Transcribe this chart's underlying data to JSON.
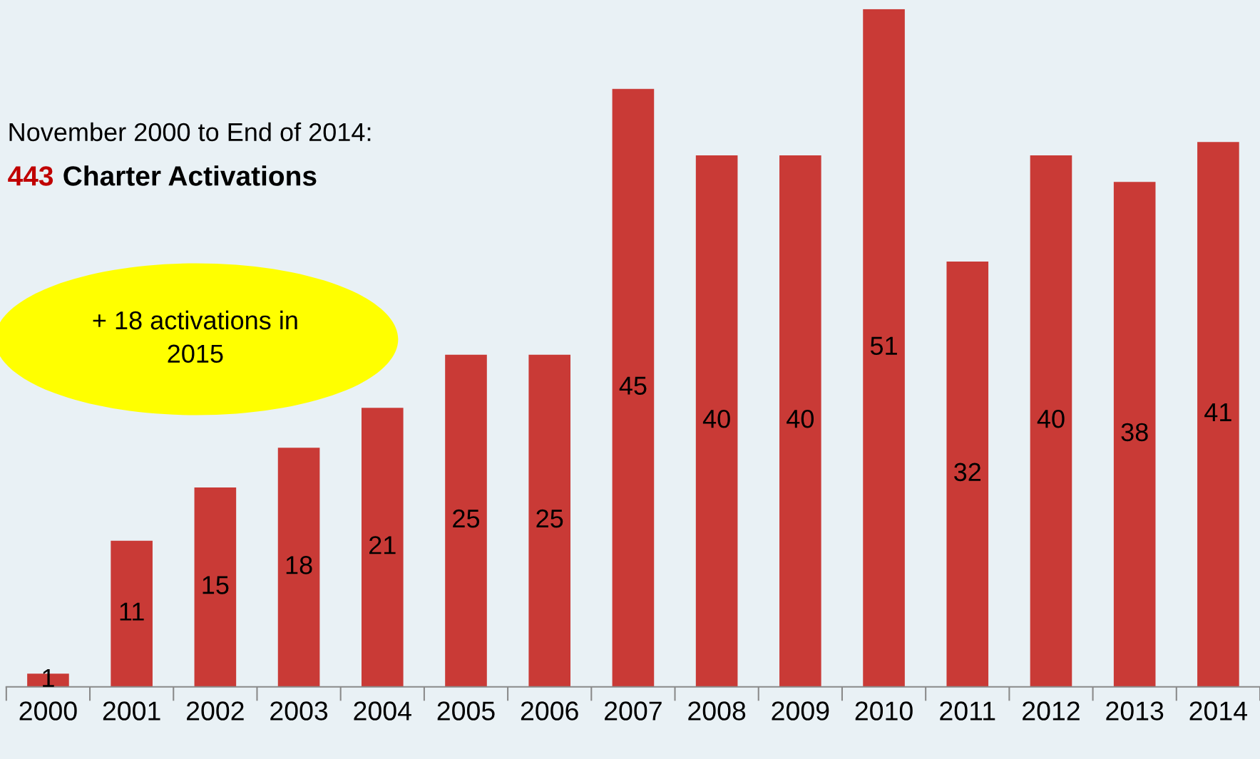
{
  "chart_data": {
    "type": "bar",
    "title": "November 2000 to End of 2014:",
    "subtitle": "443 Charter Activations",
    "annotations": [
      "+ 18 activations in\n2015"
    ],
    "categories": [
      "2000",
      "2001",
      "2002",
      "2003",
      "2004",
      "2005",
      "2006",
      "2007",
      "2008",
      "2009",
      "2010",
      "2011",
      "2012",
      "2013",
      "2014"
    ],
    "values": [
      1,
      11,
      15,
      18,
      21,
      25,
      25,
      45,
      40,
      40,
      51,
      32,
      40,
      38,
      41
    ],
    "color": "#c93a36",
    "data_labels": true,
    "grid": false,
    "legend": false
  }
}
